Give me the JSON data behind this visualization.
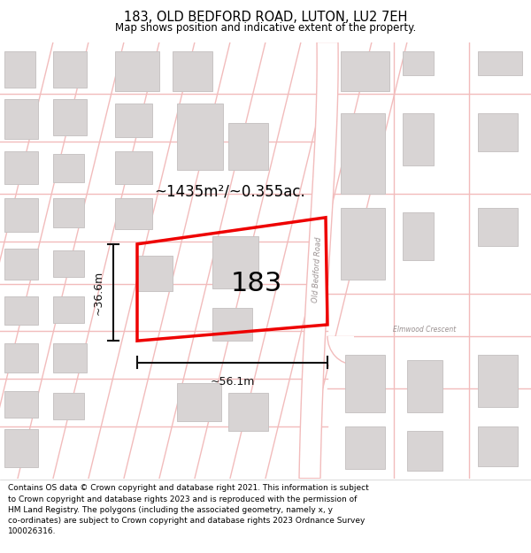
{
  "title": "183, OLD BEDFORD ROAD, LUTON, LU2 7EH",
  "subtitle": "Map shows position and indicative extent of the property.",
  "footer": "Contains OS data © Crown copyright and database right 2021. This information is subject to Crown copyright and database rights 2023 and is reproduced with the permission of HM Land Registry. The polygons (including the associated geometry, namely x, y co-ordinates) are subject to Crown copyright and database rights 2023 Ordnance Survey 100026316.",
  "area_label": "~1435m²/~0.355ac.",
  "number_label": "183",
  "width_label": "~56.1m",
  "height_label": "~36.6m",
  "map_bg": "#f7f3f3",
  "road_line_color": "#f2bcbc",
  "road_fill_color": "#ffffff",
  "building_face_color": "#d8d4d4",
  "building_edge_color": "#c8c4c4",
  "plot_edge_color": "#ee0000",
  "text_color": "#111111",
  "road_label_color": "#999090",
  "dim_color": "#111111"
}
